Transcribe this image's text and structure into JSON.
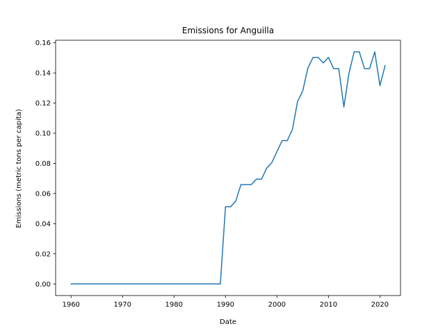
{
  "chart_data": {
    "type": "line",
    "title": "Emissions for Anguilla",
    "xlabel": "Date",
    "ylabel": "Emissions (metric tons per capita)",
    "xlim": [
      1957,
      2024
    ],
    "ylim": [
      -0.0077,
      0.1617
    ],
    "x_ticks": [
      1960,
      1970,
      1980,
      1990,
      2000,
      2010,
      2020
    ],
    "x_tick_labels": [
      "1960",
      "1970",
      "1980",
      "1990",
      "2000",
      "2010",
      "2020"
    ],
    "y_ticks": [
      0.0,
      0.02,
      0.04,
      0.06,
      0.08,
      0.1,
      0.12,
      0.14,
      0.16
    ],
    "y_tick_labels": [
      "0.00",
      "0.02",
      "0.04",
      "0.06",
      "0.08",
      "0.10",
      "0.12",
      "0.14",
      "0.16"
    ],
    "grid": false,
    "legend": "none",
    "series": [
      {
        "color": "#1f77b4",
        "x": [
          1960,
          1961,
          1962,
          1963,
          1964,
          1965,
          1966,
          1967,
          1968,
          1969,
          1970,
          1971,
          1972,
          1973,
          1974,
          1975,
          1976,
          1977,
          1978,
          1979,
          1980,
          1981,
          1982,
          1983,
          1984,
          1985,
          1986,
          1987,
          1988,
          1989,
          1990,
          1991,
          1992,
          1993,
          1994,
          1995,
          1996,
          1997,
          1998,
          1999,
          2000,
          2001,
          2002,
          2003,
          2004,
          2005,
          2006,
          2007,
          2008,
          2009,
          2010,
          2011,
          2012,
          2013,
          2014,
          2015,
          2016,
          2017,
          2018,
          2019,
          2020,
          2021
        ],
        "y": [
          0,
          0,
          0,
          0,
          0,
          0,
          0,
          0,
          0,
          0,
          0,
          0,
          0,
          0,
          0,
          0,
          0,
          0,
          0,
          0,
          0,
          0,
          0,
          0,
          0,
          0,
          0,
          0,
          0,
          0,
          0.0512,
          0.0512,
          0.055,
          0.0659,
          0.0659,
          0.0659,
          0.0695,
          0.0695,
          0.0768,
          0.0805,
          0.0878,
          0.0951,
          0.0951,
          0.1025,
          0.121,
          0.128,
          0.1432,
          0.1503,
          0.1503,
          0.1466,
          0.1503,
          0.1429,
          0.1429,
          0.1174,
          0.14,
          0.154,
          0.154,
          0.1429,
          0.1429,
          0.154,
          0.1316,
          0.1448
        ]
      }
    ]
  }
}
